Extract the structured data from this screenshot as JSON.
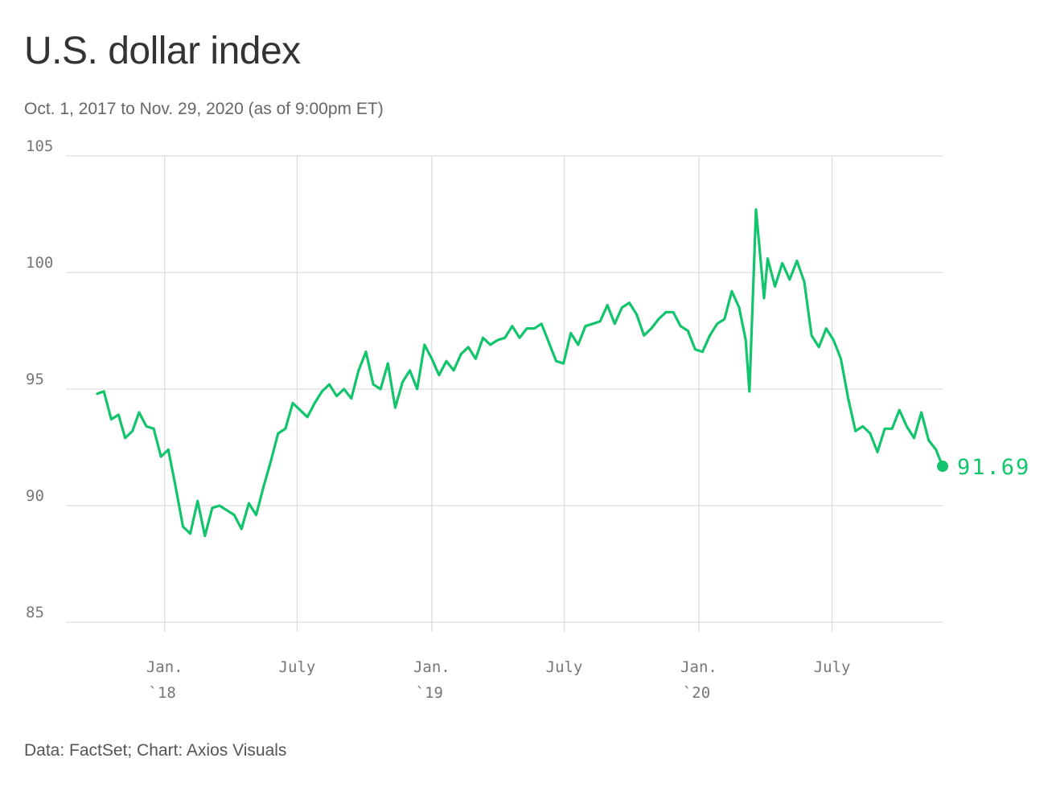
{
  "header": {
    "title": "U.S. dollar index",
    "subtitle": "Oct. 1, 2017 to Nov. 29, 2020 (as of 9:00pm ET)"
  },
  "footer": {
    "source": "Data: FactSet; Chart: Axios Visuals"
  },
  "colors": {
    "line": "#12c46b",
    "grid": "#dddddd",
    "tick_text": "#777777"
  },
  "chart_data": {
    "type": "line",
    "title": "U.S. dollar index",
    "subtitle": "Oct. 1, 2017 to Nov. 29, 2020 (as of 9:00pm ET)",
    "xlabel": "",
    "ylabel": "",
    "ylim": [
      85,
      105
    ],
    "xlim": [
      "2017-10-01",
      "2020-11-29"
    ],
    "yticks": [
      85,
      90,
      95,
      100,
      105
    ],
    "xticks": [
      {
        "date": "2018-01-01",
        "label": "Jan.",
        "sublabel": "`18"
      },
      {
        "date": "2018-07-01",
        "label": "July",
        "sublabel": ""
      },
      {
        "date": "2019-01-01",
        "label": "Jan.",
        "sublabel": "`19"
      },
      {
        "date": "2019-07-01",
        "label": "July",
        "sublabel": ""
      },
      {
        "date": "2020-01-01",
        "label": "Jan.",
        "sublabel": "`20"
      },
      {
        "date": "2020-07-01",
        "label": "July",
        "sublabel": ""
      }
    ],
    "grid": "horizontal and vertical",
    "end_label": "91.69",
    "series": [
      {
        "points": [
          [
            "2017-10-01",
            94.8
          ],
          [
            "2017-10-10",
            94.9
          ],
          [
            "2017-10-20",
            93.7
          ],
          [
            "2017-10-30",
            93.9
          ],
          [
            "2017-11-08",
            92.9
          ],
          [
            "2017-11-18",
            93.2
          ],
          [
            "2017-11-27",
            94.0
          ],
          [
            "2017-12-07",
            93.4
          ],
          [
            "2017-12-17",
            93.3
          ],
          [
            "2017-12-27",
            92.1
          ],
          [
            "2018-01-06",
            92.4
          ],
          [
            "2018-01-16",
            90.8
          ],
          [
            "2018-01-26",
            89.1
          ],
          [
            "2018-02-05",
            88.8
          ],
          [
            "2018-02-15",
            90.2
          ],
          [
            "2018-02-25",
            88.7
          ],
          [
            "2018-03-07",
            89.9
          ],
          [
            "2018-03-17",
            90.0
          ],
          [
            "2018-03-27",
            89.8
          ],
          [
            "2018-04-06",
            89.6
          ],
          [
            "2018-04-16",
            89.0
          ],
          [
            "2018-04-26",
            90.1
          ],
          [
            "2018-05-06",
            89.6
          ],
          [
            "2018-05-16",
            90.8
          ],
          [
            "2018-05-26",
            91.9
          ],
          [
            "2018-06-05",
            93.1
          ],
          [
            "2018-06-15",
            93.3
          ],
          [
            "2018-06-25",
            94.4
          ],
          [
            "2018-07-05",
            94.1
          ],
          [
            "2018-07-15",
            93.8
          ],
          [
            "2018-07-25",
            94.4
          ],
          [
            "2018-08-04",
            94.9
          ],
          [
            "2018-08-14",
            95.2
          ],
          [
            "2018-08-24",
            94.7
          ],
          [
            "2018-09-03",
            95.0
          ],
          [
            "2018-09-13",
            94.6
          ],
          [
            "2018-09-23",
            95.8
          ],
          [
            "2018-10-03",
            96.6
          ],
          [
            "2018-10-13",
            95.2
          ],
          [
            "2018-10-23",
            95.0
          ],
          [
            "2018-11-02",
            96.1
          ],
          [
            "2018-11-12",
            94.2
          ],
          [
            "2018-11-22",
            95.3
          ],
          [
            "2018-12-02",
            95.8
          ],
          [
            "2018-12-12",
            95.0
          ],
          [
            "2018-12-22",
            96.9
          ],
          [
            "2019-01-01",
            96.3
          ],
          [
            "2019-01-11",
            95.6
          ],
          [
            "2019-01-21",
            96.2
          ],
          [
            "2019-01-31",
            95.8
          ],
          [
            "2019-02-10",
            96.5
          ],
          [
            "2019-02-20",
            96.8
          ],
          [
            "2019-03-02",
            96.3
          ],
          [
            "2019-03-12",
            97.2
          ],
          [
            "2019-03-22",
            96.9
          ],
          [
            "2019-04-01",
            97.1
          ],
          [
            "2019-04-11",
            97.2
          ],
          [
            "2019-04-21",
            97.7
          ],
          [
            "2019-05-01",
            97.2
          ],
          [
            "2019-05-11",
            97.6
          ],
          [
            "2019-05-21",
            97.6
          ],
          [
            "2019-05-31",
            97.8
          ],
          [
            "2019-06-10",
            97.0
          ],
          [
            "2019-06-20",
            96.2
          ],
          [
            "2019-06-30",
            96.1
          ],
          [
            "2019-07-10",
            97.4
          ],
          [
            "2019-07-20",
            96.9
          ],
          [
            "2019-07-30",
            97.7
          ],
          [
            "2019-08-09",
            97.8
          ],
          [
            "2019-08-19",
            97.9
          ],
          [
            "2019-08-29",
            98.6
          ],
          [
            "2019-09-08",
            97.8
          ],
          [
            "2019-09-18",
            98.5
          ],
          [
            "2019-09-28",
            98.7
          ],
          [
            "2019-10-08",
            98.2
          ],
          [
            "2019-10-18",
            97.3
          ],
          [
            "2019-10-28",
            97.6
          ],
          [
            "2019-11-07",
            98.0
          ],
          [
            "2019-11-17",
            98.3
          ],
          [
            "2019-11-27",
            98.3
          ],
          [
            "2019-12-07",
            97.7
          ],
          [
            "2019-12-17",
            97.5
          ],
          [
            "2019-12-27",
            96.7
          ],
          [
            "2020-01-06",
            96.6
          ],
          [
            "2020-01-16",
            97.3
          ],
          [
            "2020-01-26",
            97.8
          ],
          [
            "2020-02-05",
            98.0
          ],
          [
            "2020-02-15",
            99.2
          ],
          [
            "2020-02-25",
            98.5
          ],
          [
            "2020-03-05",
            97.1
          ],
          [
            "2020-03-10",
            94.9
          ],
          [
            "2020-03-14",
            98.3
          ],
          [
            "2020-03-19",
            102.7
          ],
          [
            "2020-03-24",
            101.0
          ],
          [
            "2020-03-30",
            98.9
          ],
          [
            "2020-04-04",
            100.6
          ],
          [
            "2020-04-14",
            99.4
          ],
          [
            "2020-04-24",
            100.4
          ],
          [
            "2020-05-04",
            99.7
          ],
          [
            "2020-05-14",
            100.5
          ],
          [
            "2020-05-24",
            99.6
          ],
          [
            "2020-06-03",
            97.3
          ],
          [
            "2020-06-13",
            96.8
          ],
          [
            "2020-06-23",
            97.6
          ],
          [
            "2020-07-03",
            97.1
          ],
          [
            "2020-07-13",
            96.3
          ],
          [
            "2020-07-23",
            94.6
          ],
          [
            "2020-08-02",
            93.2
          ],
          [
            "2020-08-12",
            93.4
          ],
          [
            "2020-08-22",
            93.1
          ],
          [
            "2020-09-01",
            92.3
          ],
          [
            "2020-09-11",
            93.3
          ],
          [
            "2020-09-21",
            93.3
          ],
          [
            "2020-10-01",
            94.1
          ],
          [
            "2020-10-11",
            93.4
          ],
          [
            "2020-10-21",
            92.9
          ],
          [
            "2020-10-31",
            94.0
          ],
          [
            "2020-11-10",
            92.8
          ],
          [
            "2020-11-20",
            92.4
          ],
          [
            "2020-11-29",
            91.69
          ]
        ]
      }
    ]
  }
}
